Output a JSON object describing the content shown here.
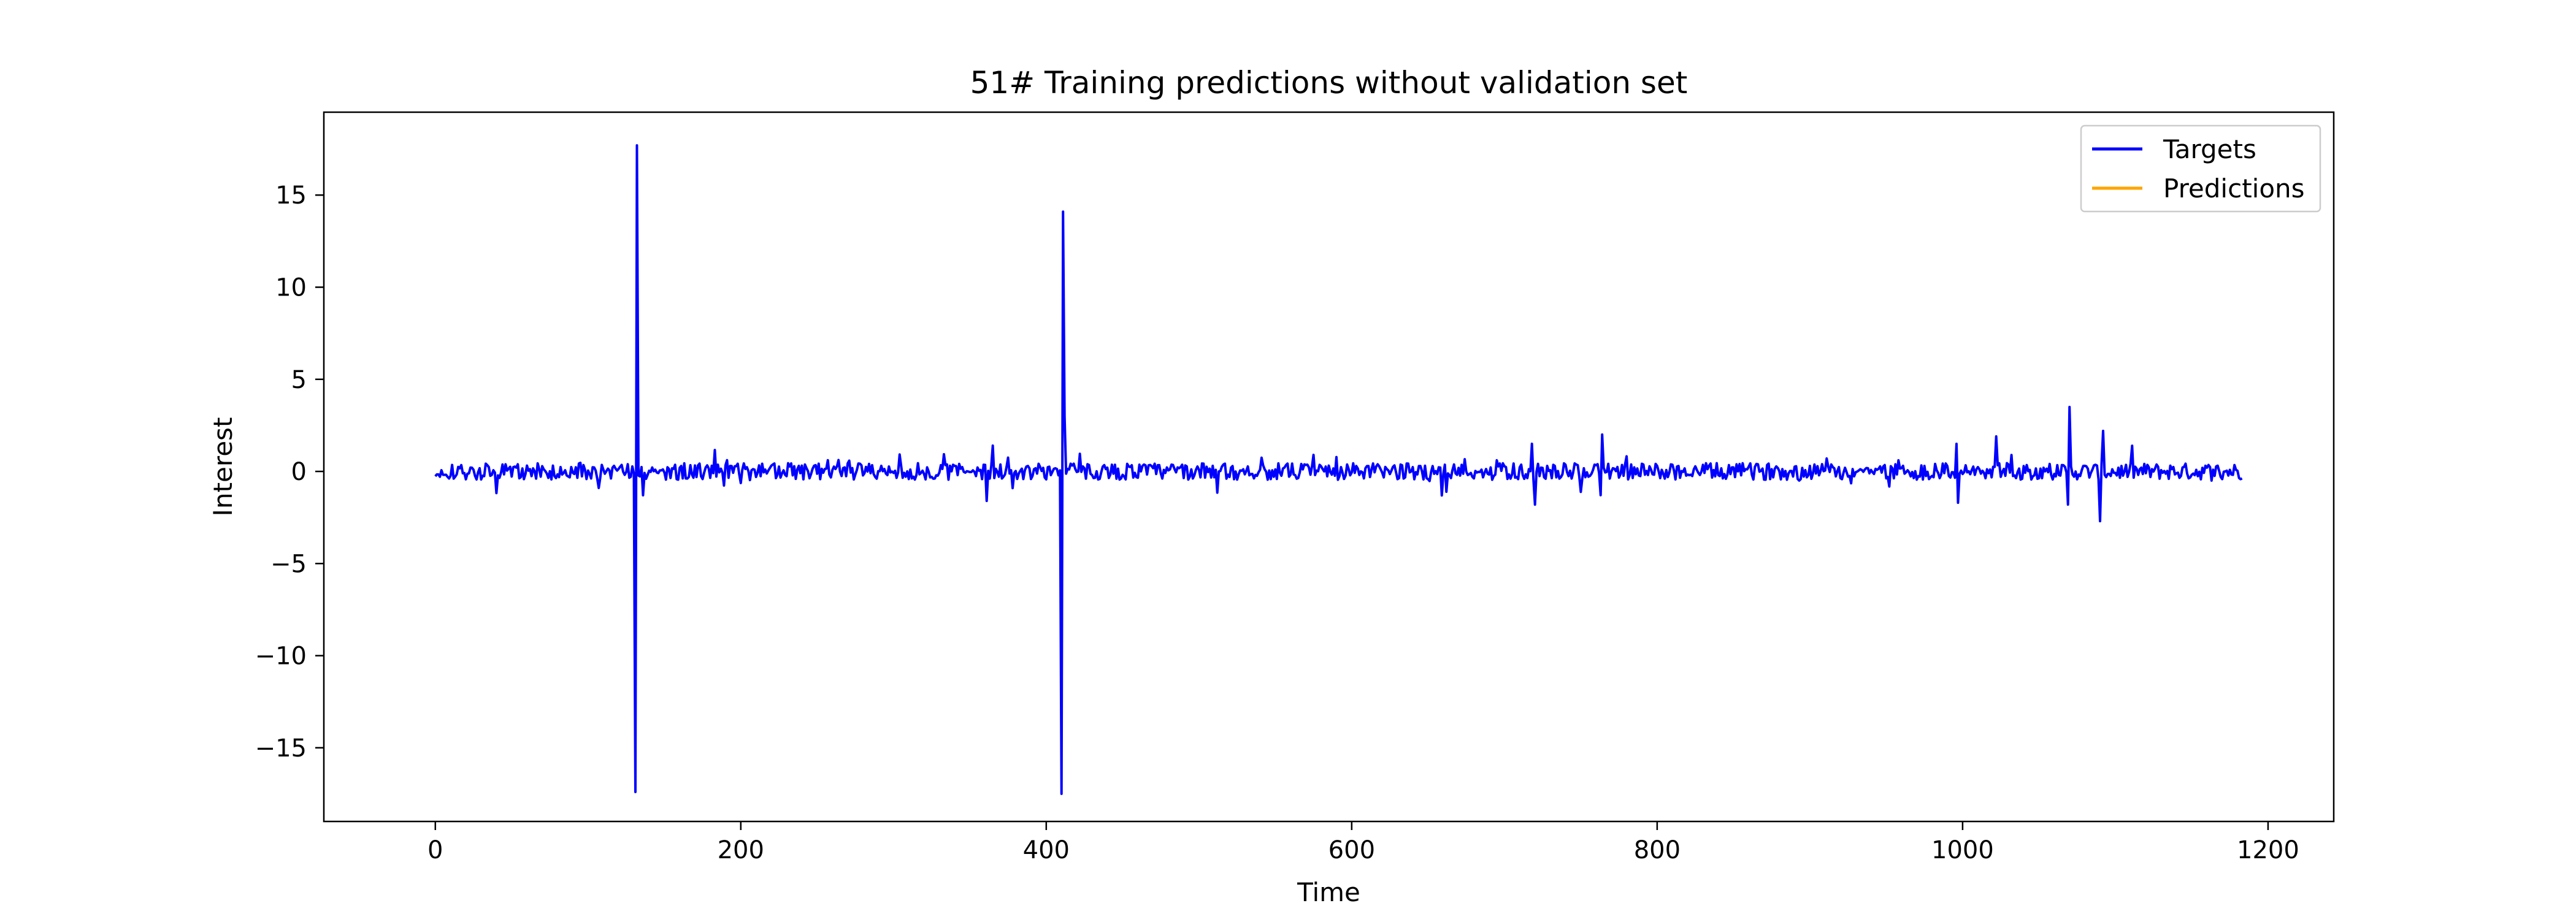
{
  "chart_data": {
    "type": "line",
    "title": "51# Training predictions without validation set",
    "xlabel": "Time",
    "ylabel": "Interest",
    "xlim": [
      -73,
      1243
    ],
    "ylim": [
      -19.0,
      19.5
    ],
    "xticks": [
      0,
      200,
      400,
      600,
      800,
      1000,
      1200
    ],
    "yticks": [
      -15,
      -10,
      -5,
      0,
      5,
      10,
      15
    ],
    "x_start": 0,
    "x_end": 1183,
    "grid": false,
    "legend_position": "top-right",
    "series": [
      {
        "name": "Targets",
        "color": "#0000ff",
        "description": "oscillating signal around 0 (amplitude ~0.5) with large spikes",
        "baseline_amplitude": 0.5,
        "peaks": [
          {
            "x": 131,
            "y": -17.4
          },
          {
            "x": 132,
            "y": 17.7
          },
          {
            "x": 410,
            "y": -17.5
          },
          {
            "x": 411,
            "y": 14.1
          },
          {
            "x": 412,
            "y": 3.0
          },
          {
            "x": 1070,
            "y": 3.5
          },
          {
            "x": 1069,
            "y": -1.8
          },
          {
            "x": 1092,
            "y": 2.2
          },
          {
            "x": 1090,
            "y": -2.7
          },
          {
            "x": 764,
            "y": 2.0
          },
          {
            "x": 997,
            "y": -1.7
          },
          {
            "x": 996,
            "y": 1.5
          },
          {
            "x": 1022,
            "y": 1.9
          },
          {
            "x": 720,
            "y": -1.8
          },
          {
            "x": 718,
            "y": 1.5
          },
          {
            "x": 365,
            "y": 1.4
          },
          {
            "x": 361,
            "y": -1.6
          },
          {
            "x": 659,
            "y": -1.3
          }
        ]
      },
      {
        "name": "Predictions",
        "color": "#ffa500",
        "values": []
      }
    ]
  }
}
